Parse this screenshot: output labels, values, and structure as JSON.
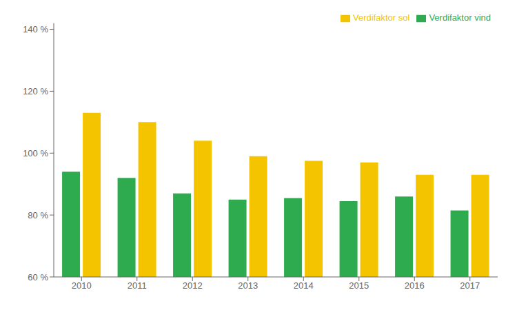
{
  "chart_data": {
    "type": "bar",
    "categories": [
      "2010",
      "2011",
      "2012",
      "2013",
      "2014",
      "2015",
      "2016",
      "2017"
    ],
    "series": [
      {
        "name": "Verdifaktor vind",
        "color": "#2EAB4E",
        "values": [
          0.94,
          0.92,
          0.87,
          0.85,
          0.855,
          0.845,
          0.86,
          0.815
        ]
      },
      {
        "name": "Verdifaktor sol",
        "color": "#F5C400",
        "values": [
          1.13,
          1.1,
          1.04,
          0.99,
          0.975,
          0.97,
          0.93,
          0.93
        ]
      }
    ],
    "ylim": [
      0.6,
      1.42
    ],
    "yticks": [
      {
        "value": 0.6,
        "label": "60 %"
      },
      {
        "value": 0.8,
        "label": "80 %"
      },
      {
        "value": 1.0,
        "label": "100 %"
      },
      {
        "value": 1.2,
        "label": "120 %"
      },
      {
        "value": 1.4,
        "label": "140 %"
      }
    ],
    "grid": false,
    "legend": "upper right"
  }
}
